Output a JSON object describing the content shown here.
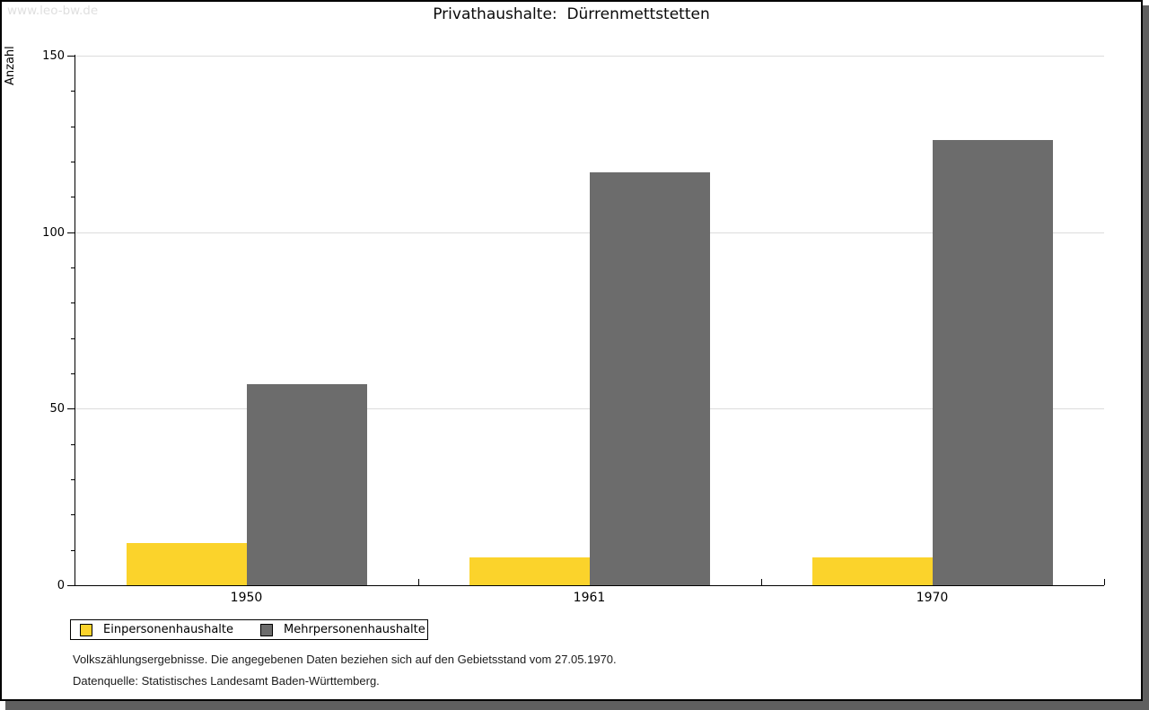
{
  "watermark": "www.leo-bw.de",
  "title": "Privathaushalte:  Dürrenmettstetten",
  "chart_data": {
    "type": "bar",
    "title": "Privathaushalte: Dürrenmettstetten",
    "xlabel": "",
    "ylabel": "Anzahl",
    "categories": [
      "1950",
      "1961",
      "1970"
    ],
    "series": [
      {
        "name": "Einpersonenhaushalte",
        "color": "#FBD32B",
        "values": [
          12,
          8,
          8
        ]
      },
      {
        "name": "Mehrpersonenhaushalte",
        "color": "#6C6C6C",
        "values": [
          57,
          117,
          126
        ]
      }
    ],
    "ylim": [
      0,
      150
    ],
    "ytick_major_step": 50,
    "ytick_minor_step": 10,
    "grid": "horizontal gridlines at major ticks",
    "legend_position": "bottom-left"
  },
  "footer": {
    "line1": "Volkszählungsergebnisse. Die angegebenen Daten beziehen sich auf den Gebietsstand vom 27.05.1970.",
    "line2": "Datenquelle: Statistisches Landesamt Baden-Württemberg."
  }
}
